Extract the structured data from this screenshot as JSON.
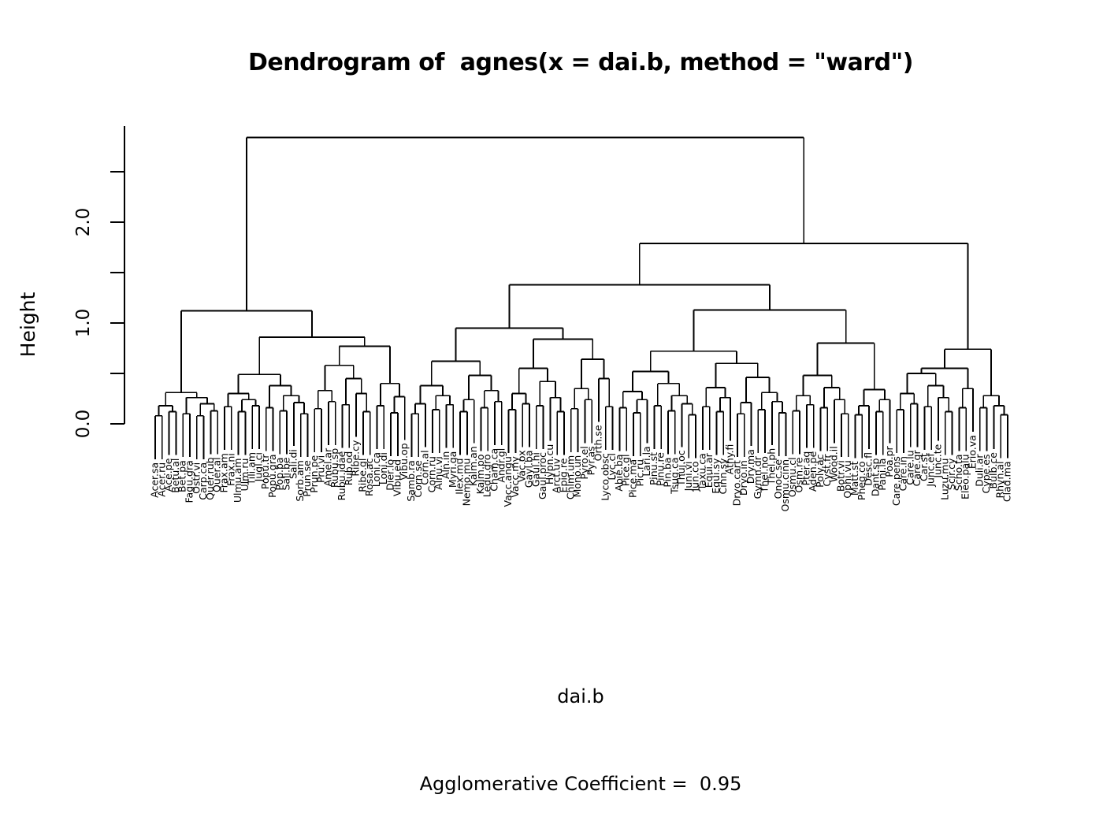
{
  "chart_data": {
    "type": "dendrogram",
    "title": "Dendrogram of  agnes(x = dai.b, method = \"ward\")",
    "ylabel": "Height",
    "xlabel_line1": "dai.b",
    "xlabel_line2": "Agglomerative Coefficient =  0.95",
    "agglomerative_coefficient": 0.95,
    "clustering_call": "agnes(x = dai.b, method = \"ward\")",
    "ylim": [
      0,
      2.9
    ],
    "root_height": 2.84,
    "grid": false,
    "n_leaves": 124,
    "yticks": [
      {
        "v": 0.0,
        "label": "0.0"
      },
      {
        "v": 0.5,
        "label": ""
      },
      {
        "v": 1.0,
        "label": "1.0"
      },
      {
        "v": 1.5,
        "label": ""
      },
      {
        "v": 2.0,
        "label": "2.0"
      },
      {
        "v": 2.5,
        "label": ""
      }
    ],
    "leaves": [
      "Acer.sa",
      "Acer.ru",
      "Ace.pe",
      "Betu.al",
      "Bet.pa",
      "Fagu.gra",
      "Ostr.vi",
      "Carp.ca",
      "Quer.rub",
      "Quer.al",
      "Frax.am",
      "Frax.ni",
      "Ulmu.am",
      "Ulm.ru",
      "Tili.am",
      "Jugl.ci",
      "Popu.tr",
      "Popu.gra",
      "Pop.ba",
      "Sali.be",
      "Sali.di",
      "Sorb.am",
      "Prun.se",
      "Prun.pe",
      "Pru.vi",
      "Amel.ar",
      "Rubu.sp",
      "Rubu.idae",
      "Rub.od",
      "Ribe.cy",
      "Ribe.gl",
      "Rosa.ac",
      "Loni.ca",
      "Loni.di",
      "Dier.lo",
      "Vibu.ed",
      "Vibu.op",
      "Samb.ra",
      "Corn.se",
      "Corn.al",
      "Corn.ru",
      "Alnu.vi",
      "Aln.in",
      "Myri.ga",
      "Ilex.mu",
      "Nemo.mu",
      "Kalm.an",
      "Kalm.po",
      "Ledu.gro",
      "Cham.ca",
      "Andr.gl",
      "Vacc.angu",
      "Vacc.my",
      "Vac.ox",
      "Gayl.ba",
      "Gaul.hi",
      "Gaul.proc",
      "Hypn.cu",
      "Arct.uv",
      "Epig.re",
      "Chim.um",
      "Mono.un",
      "Pyro.el",
      "Pyr.as",
      "Orth.se",
      "Lyco.obsc",
      "Lyc.cl",
      "Abie.ba",
      "Pice.gl",
      "Pice.ma",
      "Pic.ru",
      "Lari.la",
      "Pinu.st",
      "Pinu.re",
      "Pin.ba",
      "Tsug.ca",
      "Thuj.oc",
      "Juni.vi",
      "Jun.co",
      "Taxu.ca",
      "Equi.ar",
      "Equi.sy",
      "Cinn.sy",
      "Athy.fi",
      "Dryo.cart",
      "Dryo.in",
      "Dry.ma",
      "Gymn.dr",
      "Thel.no",
      "Thel.ph",
      "Onoc.se",
      "Osmu.cinn",
      "Osmu.cl",
      "Osm.re",
      "Pter.aq",
      "Aden.pe",
      "Poly.ac",
      "Cyst.fr",
      "Wood.il",
      "Botr.vi",
      "Ophi.vu",
      "Matt.st",
      "Pheg.co",
      "Desc.fl",
      "Dant.sp",
      "Pani.la",
      "Poa.pr",
      "Care.pens",
      "Care.in",
      "Care.lu",
      "Care.gr",
      "Car.st",
      "Junc.ef",
      "Junc.te",
      "Luzu.mu",
      "Scir.cy",
      "Scho.ta",
      "Eleo.palu",
      "Erio.va",
      "Duli.ar",
      "Cype.es",
      "Bulb.ce",
      "Rhyn.al",
      "Clad.ma"
    ],
    "tree": [
      2.84,
      [
        1.12,
        [
          0.31,
          [
            0.18,
            [
              0.08,
              0,
              1
            ],
            [
              0.12,
              2,
              3
            ]
          ],
          [
            0.26,
            [
              0.1,
              4,
              5
            ],
            [
              0.2,
              [
                0.08,
                6,
                7
              ],
              [
                0.13,
                8,
                9
              ]
            ]
          ]
        ],
        [
          0.86,
          [
            0.49,
            [
              0.3,
              [
                0.17,
                10,
                11
              ],
              [
                0.24,
                [
                  0.12,
                  12,
                  13
                ],
                [
                  0.18,
                  14,
                  15
                ]
              ]
            ],
            [
              0.38,
              [
                0.16,
                16,
                17
              ],
              [
                0.28,
                [
                  0.13,
                  18,
                  19
                ],
                [
                  0.21,
                  20,
                  [
                    0.1,
                    21,
                    22
                  ]
                ]
              ]
            ]
          ],
          [
            0.77,
            [
              0.58,
              [
                0.33,
                [
                  0.15,
                  23,
                  24
                ],
                [
                  0.22,
                  25,
                  26
                ]
              ],
              [
                0.45,
                [
                  0.19,
                  27,
                  28
                ],
                [
                  0.3,
                  29,
                  [
                    0.12,
                    30,
                    31
                  ]
                ]
              ]
            ],
            [
              0.4,
              [
                0.18,
                32,
                33
              ],
              [
                0.27,
                [
                  0.11,
                  34,
                  35
                ],
                36
              ]
            ]
          ]
        ]
      ],
      [
        1.79,
        [
          1.38,
          [
            0.95,
            [
              0.62,
              [
                0.38,
                [
                  0.2,
                  [
                    0.1,
                    37,
                    38
                  ],
                  39
                ],
                [
                  0.28,
                  [
                    0.14,
                    40,
                    41
                  ],
                  [
                    0.19,
                    42,
                    43
                  ]
                ]
              ],
              [
                0.48,
                [
                  0.24,
                  [
                    0.12,
                    44,
                    45
                  ],
                  46
                ],
                [
                  0.33,
                  [
                    0.16,
                    47,
                    48
                  ],
                  [
                    0.22,
                    49,
                    50
                  ]
                ]
              ]
            ],
            [
              0.84,
              [
                0.55,
                [
                  0.3,
                  [
                    0.14,
                    51,
                    52
                  ],
                  [
                    0.2,
                    53,
                    54
                  ]
                ],
                [
                  0.42,
                  [
                    0.18,
                    55,
                    56
                  ],
                  [
                    0.26,
                    57,
                    [
                      0.12,
                      58,
                      59
                    ]
                  ]
                ]
              ],
              [
                0.64,
                [
                  0.35,
                  [
                    0.15,
                    60,
                    61
                  ],
                  [
                    0.24,
                    62,
                    63
                  ]
                ],
                [
                  0.45,
                  64,
                  [
                    0.17,
                    65,
                    66
                  ]
                ]
              ]
            ]
          ],
          [
            1.13,
            [
              0.72,
              [
                0.52,
                [
                  0.32,
                  [
                    0.16,
                    67,
                    68
                  ],
                  [
                    0.24,
                    [
                      0.11,
                      69,
                      70
                    ],
                    71
                  ]
                ],
                [
                  0.4,
                  [
                    0.18,
                    72,
                    73
                  ],
                  [
                    0.28,
                    [
                      0.13,
                      74,
                      75
                    ],
                    [
                      0.2,
                      76,
                      [
                        0.09,
                        77,
                        78
                      ]
                    ]
                  ]
                ]
              ],
              [
                0.6,
                [
                  0.36,
                  [
                    0.17,
                    79,
                    80
                  ],
                  [
                    0.26,
                    [
                      0.12,
                      81,
                      82
                    ],
                    83
                  ]
                ],
                [
                  0.46,
                  [
                    0.21,
                    [
                      0.1,
                      84,
                      85
                    ],
                    86
                  ],
                  [
                    0.31,
                    [
                      0.14,
                      87,
                      88
                    ],
                    [
                      0.22,
                      89,
                      [
                        0.11,
                        90,
                        91
                      ]
                    ]
                  ]
                ]
              ]
            ],
            [
              0.8,
              [
                0.48,
                [
                  0.28,
                  [
                    0.13,
                    92,
                    93
                  ],
                  [
                    0.19,
                    94,
                    95
                  ]
                ],
                [
                  0.36,
                  [
                    0.16,
                    96,
                    97
                  ],
                  [
                    0.24,
                    98,
                    [
                      0.1,
                      99,
                      100
                    ]
                  ]
                ]
              ],
              [
                0.34,
                [
                  0.18,
                  [
                    0.09,
                    101,
                    102
                  ],
                  103
                ],
                [
                  0.24,
                  [
                    0.12,
                    104,
                    105
                  ],
                  106
                ]
              ]
            ]
          ]
        ],
        [
          0.74,
          [
            0.55,
            [
              0.5,
              [
                0.3,
                [
                  0.14,
                  107,
                  108
                ],
                [
                  0.2,
                  109,
                  110
                ]
              ],
              [
                0.38,
                [
                  0.17,
                  111,
                  112
                ],
                [
                  0.26,
                  113,
                  [
                    0.12,
                    114,
                    115
                  ]
                ]
              ]
            ],
            [
              0.35,
              [
                0.16,
                116,
                117
              ],
              118
            ]
          ],
          [
            0.28,
            [
              0.16,
              119,
              120
            ],
            [
              0.18,
              121,
              [
                0.09,
                122,
                123
              ]
            ]
          ]
        ]
      ]
    ]
  }
}
